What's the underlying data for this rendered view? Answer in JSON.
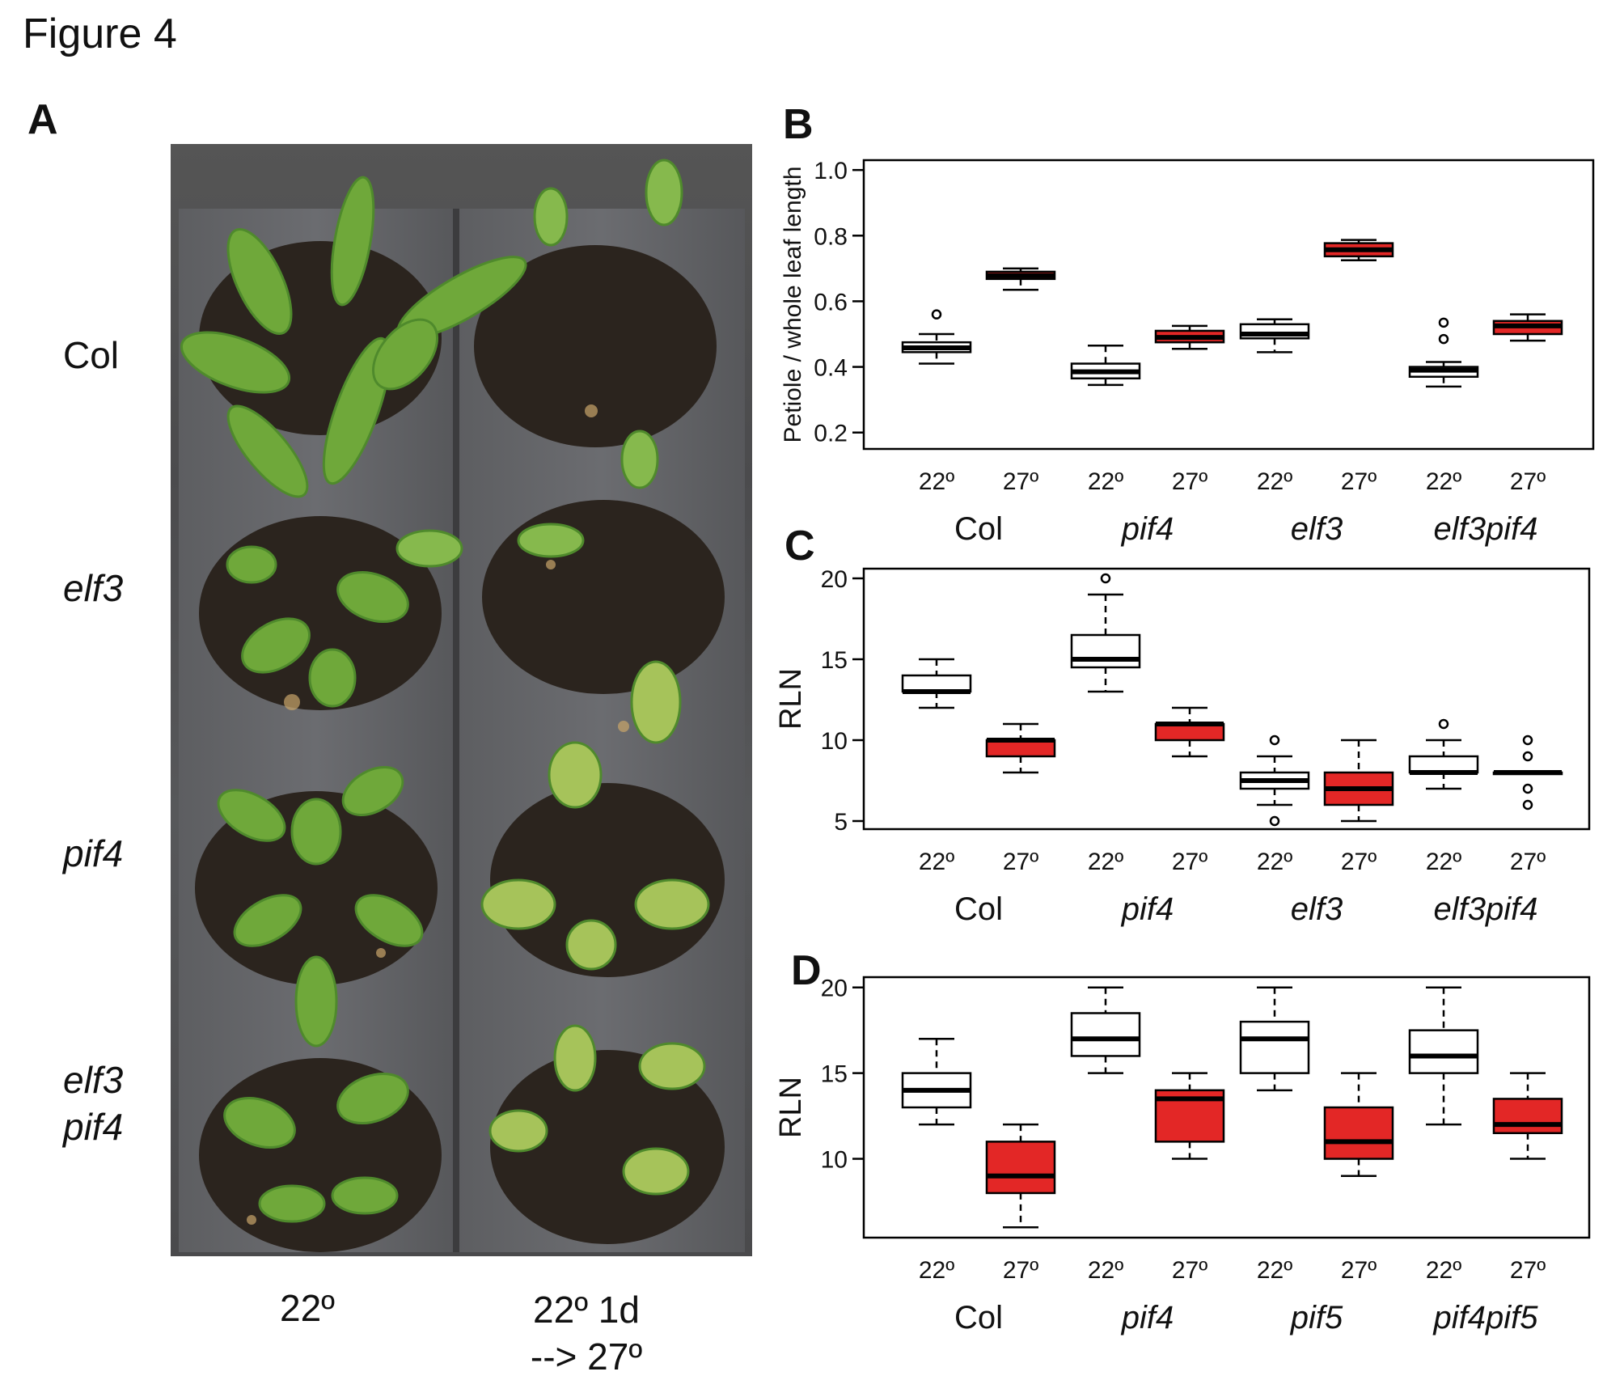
{
  "figure_title": "Figure 4",
  "panels": {
    "A": {
      "letter": "A",
      "rows": [
        {
          "line1": "Col",
          "line2": "",
          "italic": false
        },
        {
          "line1": "elf3",
          "line2": "",
          "italic": true
        },
        {
          "line1": "pif4",
          "line2": "",
          "italic": true
        },
        {
          "line1": "elf3",
          "line2": "pif4",
          "italic": true
        }
      ],
      "columns": [
        {
          "line1": "22º",
          "line2": ""
        },
        {
          "line1": "22º 1d",
          "line2": "--> 27º"
        }
      ]
    },
    "B": {
      "letter": "B"
    },
    "C": {
      "letter": "C"
    },
    "D": {
      "letter": "D"
    }
  },
  "colors": {
    "warm": "#e32726",
    "cool": "#ffffff",
    "median": "#000000",
    "plant": "#6fa83a",
    "plant_dark": "#4f8a2c",
    "soil": "#2a231d",
    "tray": "#4a4a4c"
  },
  "chart_data": [
    {
      "type": "box",
      "panel": "B",
      "ylabel": "Petiole / whole leaf length",
      "ylim": [
        0.15,
        1.03
      ],
      "yticks": [
        0.2,
        0.4,
        0.6,
        0.8,
        1.0
      ],
      "ytick_labels": [
        "0.2",
        "0.4",
        "0.6",
        "0.8",
        "1.0"
      ],
      "temp_labels": [
        "22º",
        "27º",
        "22º",
        "27º",
        "22º",
        "27º",
        "22º",
        "27º"
      ],
      "groups": [
        {
          "label": "Col",
          "italic": false
        },
        {
          "label": "pif4",
          "italic": true
        },
        {
          "label": "elf3",
          "italic": true
        },
        {
          "label": "elf3pif4",
          "italic": true
        }
      ],
      "boxes": [
        {
          "temp": "22º",
          "min": 0.41,
          "q1": 0.445,
          "median": 0.458,
          "q3": 0.475,
          "max": 0.5,
          "outliers": [
            0.56
          ]
        },
        {
          "temp": "27º",
          "min": 0.635,
          "q1": 0.668,
          "median": 0.678,
          "q3": 0.69,
          "max": 0.7,
          "outliers": []
        },
        {
          "temp": "22º",
          "min": 0.345,
          "q1": 0.365,
          "median": 0.385,
          "q3": 0.41,
          "max": 0.465,
          "outliers": []
        },
        {
          "temp": "27º",
          "min": 0.455,
          "q1": 0.475,
          "median": 0.49,
          "q3": 0.51,
          "max": 0.525,
          "outliers": []
        },
        {
          "temp": "22º",
          "min": 0.445,
          "q1": 0.487,
          "median": 0.5,
          "q3": 0.53,
          "max": 0.545,
          "outliers": []
        },
        {
          "temp": "27º",
          "min": 0.725,
          "q1": 0.737,
          "median": 0.757,
          "q3": 0.777,
          "max": 0.787,
          "outliers": []
        },
        {
          "temp": "22º",
          "min": 0.34,
          "q1": 0.37,
          "median": 0.39,
          "q3": 0.4,
          "max": 0.415,
          "outliers": [
            0.535,
            0.485
          ]
        },
        {
          "temp": "27º",
          "min": 0.48,
          "q1": 0.5,
          "median": 0.525,
          "q3": 0.54,
          "max": 0.56,
          "outliers": []
        }
      ]
    },
    {
      "type": "box",
      "panel": "C",
      "ylabel": "RLN",
      "ylim": [
        4.5,
        20.6
      ],
      "yticks": [
        5,
        10,
        15,
        20
      ],
      "ytick_labels": [
        "5",
        "10",
        "15",
        "20"
      ],
      "temp_labels": [
        "22º",
        "27º",
        "22º",
        "27º",
        "22º",
        "27º",
        "22º",
        "27º"
      ],
      "groups": [
        {
          "label": "Col",
          "italic": false
        },
        {
          "label": "pif4",
          "italic": true
        },
        {
          "label": "elf3",
          "italic": true
        },
        {
          "label": "elf3pif4",
          "italic": true
        }
      ],
      "boxes": [
        {
          "temp": "22º",
          "min": 12,
          "q1": 13,
          "median": 13,
          "q3": 14,
          "max": 15,
          "outliers": []
        },
        {
          "temp": "27º",
          "min": 8,
          "q1": 9,
          "median": 10,
          "q3": 10,
          "max": 11,
          "outliers": []
        },
        {
          "temp": "22º",
          "min": 13,
          "q1": 14.5,
          "median": 15,
          "q3": 16.5,
          "max": 19,
          "outliers": [
            20
          ]
        },
        {
          "temp": "27º",
          "min": 9,
          "q1": 10,
          "median": 11,
          "q3": 11,
          "max": 12,
          "outliers": []
        },
        {
          "temp": "22º",
          "min": 6,
          "q1": 7,
          "median": 7.5,
          "q3": 8,
          "max": 9,
          "outliers": [
            10,
            5
          ]
        },
        {
          "temp": "27º",
          "min": 5,
          "q1": 6,
          "median": 7,
          "q3": 8,
          "max": 10,
          "outliers": []
        },
        {
          "temp": "22º",
          "min": 7,
          "q1": 8,
          "median": 8,
          "q3": 9,
          "max": 10,
          "outliers": [
            11
          ]
        },
        {
          "temp": "27º",
          "min": 8,
          "q1": 8,
          "median": 8,
          "q3": 8,
          "max": 8,
          "outliers": [
            10,
            9,
            7,
            6
          ]
        }
      ]
    },
    {
      "type": "box",
      "panel": "D",
      "ylabel": "RLN",
      "ylim": [
        5.4,
        20.6
      ],
      "yticks": [
        10,
        15,
        20
      ],
      "ytick_labels": [
        "10",
        "15",
        "20"
      ],
      "temp_labels": [
        "22º",
        "27º",
        "22º",
        "27º",
        "22º",
        "27º",
        "22º",
        "27º"
      ],
      "groups": [
        {
          "label": "Col",
          "italic": false
        },
        {
          "label": "pif4",
          "italic": true
        },
        {
          "label": "pif5",
          "italic": true
        },
        {
          "label": "pif4pif5",
          "italic": true
        }
      ],
      "boxes": [
        {
          "temp": "22º",
          "min": 12,
          "q1": 13,
          "median": 14,
          "q3": 15,
          "max": 17,
          "outliers": []
        },
        {
          "temp": "27º",
          "min": 6,
          "q1": 8,
          "median": 9,
          "q3": 11,
          "max": 12,
          "outliers": []
        },
        {
          "temp": "22º",
          "min": 15,
          "q1": 16,
          "median": 17,
          "q3": 18.5,
          "max": 20,
          "outliers": []
        },
        {
          "temp": "27º",
          "min": 10,
          "q1": 11,
          "median": 13.5,
          "q3": 14,
          "max": 15,
          "outliers": []
        },
        {
          "temp": "22º",
          "min": 14,
          "q1": 15,
          "median": 17,
          "q3": 18,
          "max": 20,
          "outliers": []
        },
        {
          "temp": "27º",
          "min": 9,
          "q1": 10,
          "median": 11,
          "q3": 13,
          "max": 15,
          "outliers": []
        },
        {
          "temp": "22º",
          "min": 12,
          "q1": 15,
          "median": 16,
          "q3": 17.5,
          "max": 20,
          "outliers": []
        },
        {
          "temp": "27º",
          "min": 10,
          "q1": 11.5,
          "median": 12,
          "q3": 13.5,
          "max": 15,
          "outliers": []
        }
      ]
    }
  ]
}
